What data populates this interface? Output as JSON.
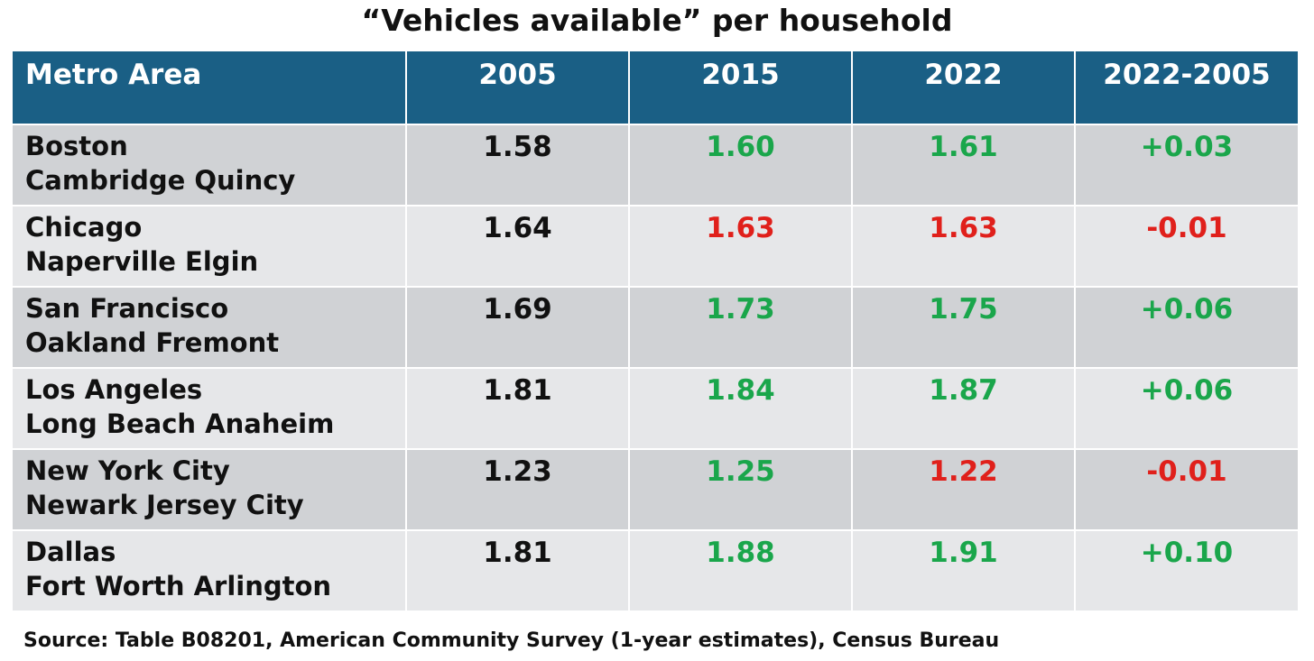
{
  "title": "“Vehicles available” per household",
  "colors": {
    "header_bg": "#1a5f85",
    "increase": "#1aa64b",
    "decrease": "#e0201b",
    "neutral": "#111111"
  },
  "chart_data": {
    "type": "table",
    "title": "“Vehicles available” per household",
    "columns": [
      "Metro Area",
      "2005",
      "2015",
      "2022",
      "2022-2005"
    ],
    "rows": [
      {
        "metro": [
          "Boston",
          "Cambridge Quincy"
        ],
        "v2005": "1.58",
        "v2015": "1.60",
        "v2022": "1.61",
        "diff": "+0.03",
        "colors": [
          "black",
          "green",
          "green",
          "green"
        ]
      },
      {
        "metro": [
          "Chicago",
          "Naperville Elgin"
        ],
        "v2005": "1.64",
        "v2015": "1.63",
        "v2022": "1.63",
        "diff": "-0.01",
        "colors": [
          "black",
          "red",
          "red",
          "red"
        ]
      },
      {
        "metro": [
          "San Francisco",
          "Oakland Fremont"
        ],
        "v2005": "1.69",
        "v2015": "1.73",
        "v2022": "1.75",
        "diff": "+0.06",
        "colors": [
          "black",
          "green",
          "green",
          "green"
        ]
      },
      {
        "metro": [
          "Los Angeles",
          "Long Beach Anaheim"
        ],
        "v2005": "1.81",
        "v2015": "1.84",
        "v2022": "1.87",
        "diff": "+0.06",
        "colors": [
          "black",
          "green",
          "green",
          "green"
        ]
      },
      {
        "metro": [
          "New York City",
          "Newark Jersey City"
        ],
        "v2005": "1.23",
        "v2015": "1.25",
        "v2022": "1.22",
        "diff": "-0.01",
        "colors": [
          "black",
          "green",
          "red",
          "red"
        ]
      },
      {
        "metro": [
          "Dallas",
          "Fort Worth Arlington"
        ],
        "v2005": "1.81",
        "v2015": "1.88",
        "v2022": "1.91",
        "diff": "+0.10",
        "colors": [
          "black",
          "green",
          "green",
          "green"
        ]
      }
    ]
  },
  "source": "Source: Table B08201, American Community Survey (1-year estimates), Census Bureau"
}
